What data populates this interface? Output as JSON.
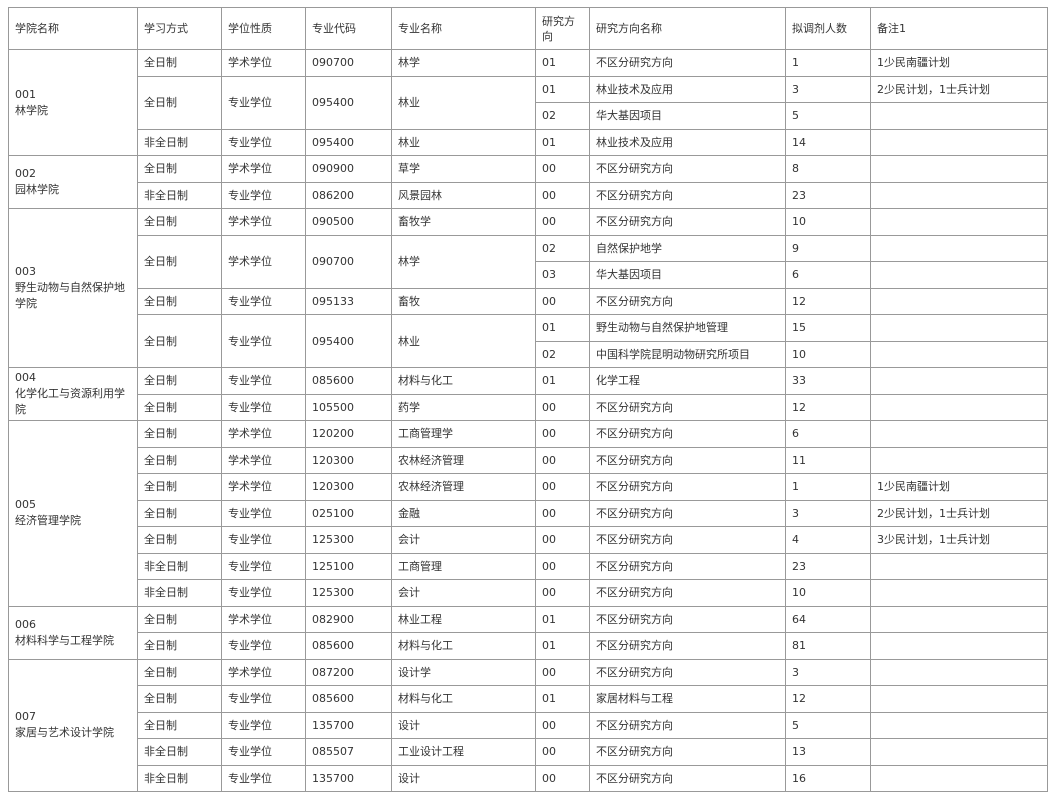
{
  "headers": [
    "学院名称",
    "学习方式",
    "学位性质",
    "专业代码",
    "专业名称",
    "研究方向",
    "研究方向名称",
    "拟调剂人数",
    "备注1"
  ],
  "colleges": [
    {
      "code": "001",
      "name": "林学院",
      "programs": [
        {
          "mode": "全日制",
          "degree": "学术学位",
          "code": "090700",
          "name": "林学",
          "directions": [
            {
              "dir": "01",
              "dir_name": "不区分研究方向",
              "count": "1",
              "note": "1少民南疆计划"
            }
          ]
        },
        {
          "mode": "全日制",
          "degree": "专业学位",
          "code": "095400",
          "name": "林业",
          "directions": [
            {
              "dir": "01",
              "dir_name": "林业技术及应用",
              "count": "3",
              "note": "2少民计划，1士兵计划"
            },
            {
              "dir": "02",
              "dir_name": "华大基因项目",
              "count": "5",
              "note": ""
            }
          ]
        },
        {
          "mode": "非全日制",
          "degree": "专业学位",
          "code": "095400",
          "name": "林业",
          "directions": [
            {
              "dir": "01",
              "dir_name": "林业技术及应用",
              "count": "14",
              "note": ""
            }
          ]
        }
      ]
    },
    {
      "code": "002",
      "name": "园林学院",
      "programs": [
        {
          "mode": "全日制",
          "degree": "学术学位",
          "code": "090900",
          "name": "草学",
          "directions": [
            {
              "dir": "00",
              "dir_name": "不区分研究方向",
              "count": "8",
              "note": ""
            }
          ]
        },
        {
          "mode": "非全日制",
          "degree": "专业学位",
          "code": "086200",
          "name": "风景园林",
          "directions": [
            {
              "dir": "00",
              "dir_name": "不区分研究方向",
              "count": "23",
              "note": ""
            }
          ]
        }
      ]
    },
    {
      "code": "003",
      "name": "野生动物与自然保护地学院",
      "programs": [
        {
          "mode": "全日制",
          "degree": "学术学位",
          "code": "090500",
          "name": "畜牧学",
          "directions": [
            {
              "dir": "00",
              "dir_name": "不区分研究方向",
              "count": "10",
              "note": ""
            }
          ]
        },
        {
          "mode": "全日制",
          "degree": "学术学位",
          "code": "090700",
          "name": "林学",
          "directions": [
            {
              "dir": "02",
              "dir_name": "自然保护地学",
              "count": "9",
              "note": ""
            },
            {
              "dir": "03",
              "dir_name": "华大基因项目",
              "count": "6",
              "note": ""
            }
          ]
        },
        {
          "mode": "全日制",
          "degree": "专业学位",
          "code": "095133",
          "name": "畜牧",
          "directions": [
            {
              "dir": "00",
              "dir_name": "不区分研究方向",
              "count": "12",
              "note": ""
            }
          ]
        },
        {
          "mode": "全日制",
          "degree": "专业学位",
          "code": "095400",
          "name": "林业",
          "directions": [
            {
              "dir": "01",
              "dir_name": "野生动物与自然保护地管理",
              "count": "15",
              "note": ""
            },
            {
              "dir": "02",
              "dir_name": "中国科学院昆明动物研究所项目",
              "count": "10",
              "note": ""
            }
          ]
        }
      ]
    },
    {
      "code": "004",
      "name": "化学化工与资源利用学院",
      "programs": [
        {
          "mode": "全日制",
          "degree": "专业学位",
          "code": "085600",
          "name": "材料与化工",
          "directions": [
            {
              "dir": "01",
              "dir_name": "化学工程",
              "count": "33",
              "note": ""
            }
          ]
        },
        {
          "mode": "全日制",
          "degree": "专业学位",
          "code": "105500",
          "name": "药学",
          "directions": [
            {
              "dir": "00",
              "dir_name": "不区分研究方向",
              "count": "12",
              "note": ""
            }
          ]
        }
      ]
    },
    {
      "code": "005",
      "name": "经济管理学院",
      "programs": [
        {
          "mode": "全日制",
          "degree": "学术学位",
          "code": "120200",
          "name": "工商管理学",
          "directions": [
            {
              "dir": "00",
              "dir_name": "不区分研究方向",
              "count": "6",
              "note": ""
            }
          ]
        },
        {
          "mode": "全日制",
          "degree": "学术学位",
          "code": "120300",
          "name": "农林经济管理",
          "directions": [
            {
              "dir": "00",
              "dir_name": "不区分研究方向",
              "count": "11",
              "note": ""
            }
          ]
        },
        {
          "mode": "全日制",
          "degree": "学术学位",
          "code": "120300",
          "name": "农林经济管理",
          "directions": [
            {
              "dir": "00",
              "dir_name": "不区分研究方向",
              "count": "1",
              "note": "1少民南疆计划"
            }
          ]
        },
        {
          "mode": "全日制",
          "degree": "专业学位",
          "code": "025100",
          "name": "金融",
          "directions": [
            {
              "dir": "00",
              "dir_name": "不区分研究方向",
              "count": "3",
              "note": "2少民计划，1士兵计划"
            }
          ]
        },
        {
          "mode": "全日制",
          "degree": "专业学位",
          "code": "125300",
          "name": "会计",
          "directions": [
            {
              "dir": "00",
              "dir_name": "不区分研究方向",
              "count": "4",
              "note": "3少民计划，1士兵计划"
            }
          ]
        },
        {
          "mode": "非全日制",
          "degree": "专业学位",
          "code": "125100",
          "name": "工商管理",
          "directions": [
            {
              "dir": "00",
              "dir_name": "不区分研究方向",
              "count": "23",
              "note": ""
            }
          ]
        },
        {
          "mode": "非全日制",
          "degree": "专业学位",
          "code": "125300",
          "name": "会计",
          "directions": [
            {
              "dir": "00",
              "dir_name": "不区分研究方向",
              "count": "10",
              "note": ""
            }
          ]
        }
      ]
    },
    {
      "code": "006",
      "name": "材料科学与工程学院",
      "programs": [
        {
          "mode": "全日制",
          "degree": "学术学位",
          "code": "082900",
          "name": "林业工程",
          "directions": [
            {
              "dir": "01",
              "dir_name": "不区分研究方向",
              "count": "64",
              "note": ""
            }
          ]
        },
        {
          "mode": "全日制",
          "degree": "专业学位",
          "code": "085600",
          "name": "材料与化工",
          "directions": [
            {
              "dir": "01",
              "dir_name": "不区分研究方向",
              "count": "81",
              "note": ""
            }
          ]
        }
      ]
    },
    {
      "code": "007",
      "name": "家居与艺术设计学院",
      "programs": [
        {
          "mode": "全日制",
          "degree": "学术学位",
          "code": "087200",
          "name": "设计学",
          "directions": [
            {
              "dir": "00",
              "dir_name": "不区分研究方向",
              "count": "3",
              "note": ""
            }
          ]
        },
        {
          "mode": "全日制",
          "degree": "专业学位",
          "code": "085600",
          "name": "材料与化工",
          "directions": [
            {
              "dir": "01",
              "dir_name": "家居材料与工程",
              "count": "12",
              "note": ""
            }
          ]
        },
        {
          "mode": "全日制",
          "degree": "专业学位",
          "code": "135700",
          "name": "设计",
          "directions": [
            {
              "dir": "00",
              "dir_name": "不区分研究方向",
              "count": "5",
              "note": ""
            }
          ]
        },
        {
          "mode": "非全日制",
          "degree": "专业学位",
          "code": "085507",
          "name": "工业设计工程",
          "directions": [
            {
              "dir": "00",
              "dir_name": "不区分研究方向",
              "count": "13",
              "note": ""
            }
          ]
        },
        {
          "mode": "非全日制",
          "degree": "专业学位",
          "code": "135700",
          "name": "设计",
          "directions": [
            {
              "dir": "00",
              "dir_name": "不区分研究方向",
              "count": "16",
              "note": ""
            }
          ]
        }
      ]
    }
  ]
}
